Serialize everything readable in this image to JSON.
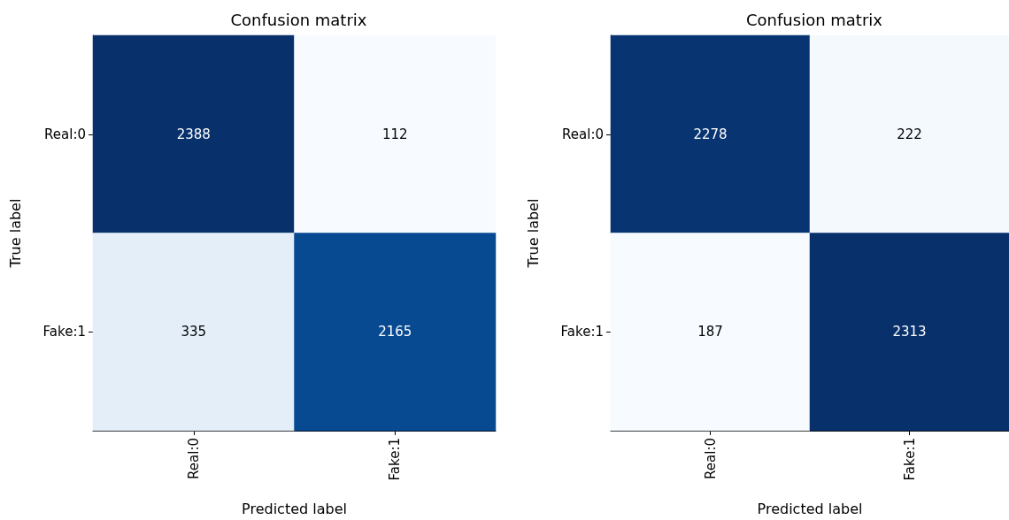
{
  "chart_data": [
    {
      "type": "heatmap",
      "title": "Confusion matrix",
      "xlabel": "Predicted label",
      "ylabel": "True label",
      "categories": [
        "Real:0",
        "Fake:1"
      ],
      "y_categories": [
        "Real:0",
        "Fake:1"
      ],
      "cells": [
        [
          2388,
          112
        ],
        [
          335,
          2165
        ]
      ],
      "data_labels": true,
      "grid": false
    },
    {
      "type": "heatmap",
      "title": "Confusion matrix",
      "xlabel": "Predicted label",
      "ylabel": "True label",
      "categories": [
        "Real:0",
        "Fake:1"
      ],
      "y_categories": [
        "Real:0",
        "Fake:1"
      ],
      "cells": [
        [
          2278,
          222
        ],
        [
          187,
          2313
        ]
      ],
      "data_labels": true,
      "grid": false
    }
  ]
}
